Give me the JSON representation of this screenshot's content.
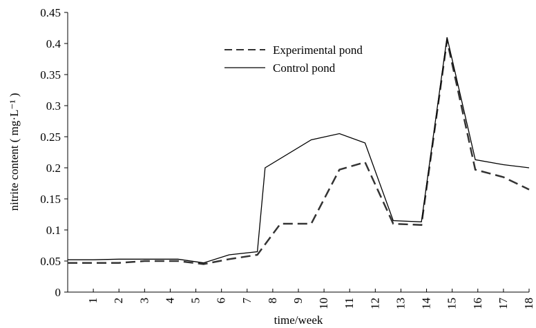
{
  "chart_data": {
    "type": "line",
    "x_label": "time/week",
    "y_label": "nitrite content ( mg·L⁻¹ )",
    "xlim": [
      0,
      18
    ],
    "xticks": [
      1,
      2,
      3,
      4,
      5,
      6,
      7,
      8,
      9,
      10,
      11,
      12,
      13,
      14,
      15,
      16,
      17,
      18
    ],
    "ylim": [
      0,
      0.45
    ],
    "yticks": [
      0,
      0.05,
      0.1,
      0.15,
      0.2,
      0.25,
      0.3,
      0.35,
      0.4,
      0.45
    ],
    "series": [
      {
        "name": "Experimental pond",
        "color": "#333333",
        "dash": true,
        "x": [
          0,
          1,
          2,
          3,
          4.3,
          5.3,
          6.3,
          7.4,
          8.3,
          9.5,
          10.6,
          11.6,
          12.7,
          13.8,
          14.8,
          15.9,
          17.0,
          18
        ],
        "values": [
          0.047,
          0.047,
          0.047,
          0.05,
          0.05,
          0.045,
          0.053,
          0.06,
          0.11,
          0.11,
          0.197,
          0.209,
          0.11,
          0.108,
          0.405,
          0.197,
          0.185,
          0.165
        ]
      },
      {
        "name": "Control pond",
        "color": "#000000",
        "dash": false,
        "x": [
          0,
          1,
          2,
          3,
          4.3,
          5.3,
          6.3,
          7.4,
          7.7,
          9.5,
          10.6,
          11.6,
          12.7,
          13.8,
          14.8,
          15.9,
          17.0,
          18
        ],
        "values": [
          0.052,
          0.052,
          0.053,
          0.053,
          0.053,
          0.047,
          0.06,
          0.065,
          0.2,
          0.245,
          0.255,
          0.24,
          0.115,
          0.113,
          0.41,
          0.213,
          0.205,
          0.2
        ]
      }
    ]
  }
}
